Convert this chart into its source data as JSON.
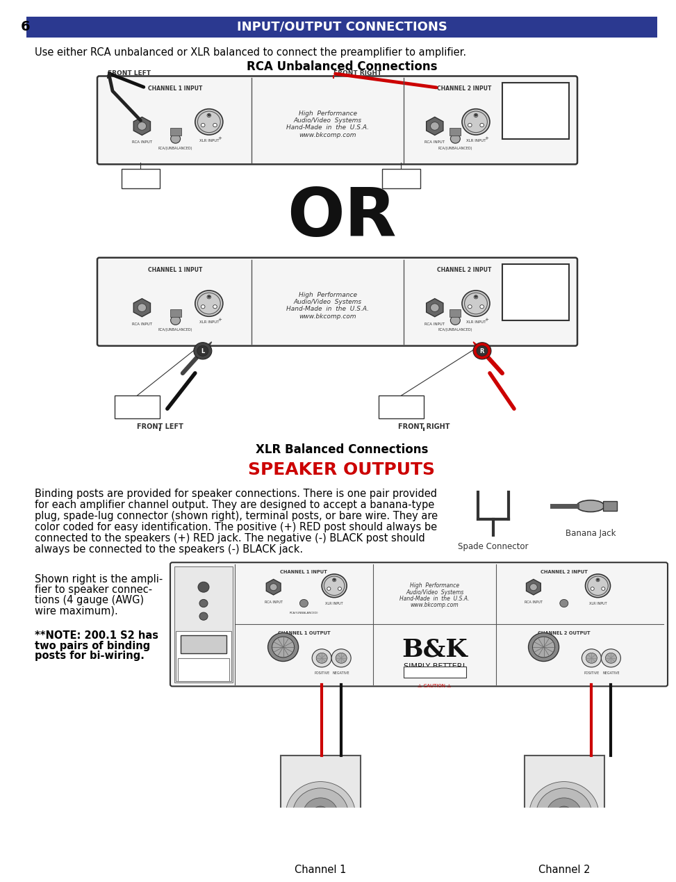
{
  "page_number": "6",
  "header_text": "INPUT/OUTPUT CONNECTIONS",
  "header_bg": "#2b3990",
  "header_text_color": "#ffffff",
  "intro_text": "Use either RCA unbalanced or XLR balanced to connect the preamplifier to amplifier.",
  "rca_title": "RCA Unbalanced Connections",
  "xlr_title": "XLR Balanced Connections",
  "speaker_title": "SPEAKER OUTPUTS",
  "speaker_title_color": "#cc0000",
  "binding_text_lines": [
    "Binding posts are provided for speaker connections. There is one pair provided",
    "for each amplifier channel output. They are designed to accept a banana-type",
    "plug, spade-lug connector (shown right), terminal posts, or bare wire. They are",
    "color coded for easy identification. The positive (+) RED post should always be",
    "connected to the speakers (+) RED jack. The negative (-) BLACK post should",
    "always be connected to the speakers (-) BLACK jack."
  ],
  "shown_text_lines": [
    "Shown right is the ampli-",
    "fier to speaker connec-",
    "tions (4 gauge (AWG)",
    "wire maximum)."
  ],
  "note_text_lines": [
    "**NOTE: 200.1 S2 has",
    "two pairs of binding",
    "posts for bi-wiring."
  ],
  "spade_label": "Spade Connector",
  "banana_label": "Banana Jack",
  "channel1_label": "Channel 1",
  "channel2_label": "Channel 2",
  "bg_color": "#ffffff",
  "body_text_color": "#000000",
  "wire_red": "#cc0000",
  "wire_black": "#111111",
  "amp_border": "#333333",
  "amp_fill": "#f5f5f5"
}
